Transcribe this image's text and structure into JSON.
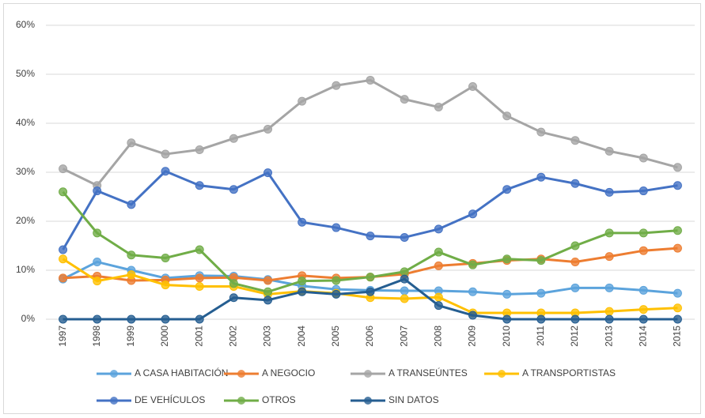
{
  "chart_data": {
    "type": "line",
    "categories": [
      "1997",
      "1998",
      "1999",
      "2000",
      "2001",
      "2002",
      "2003",
      "2004",
      "2005",
      "2006",
      "2007",
      "2008",
      "2009",
      "2010",
      "2011",
      "2012",
      "2013",
      "2014",
      "2015"
    ],
    "ylim": [
      0,
      60
    ],
    "yticks": [
      {
        "value": 0,
        "label": "0%"
      },
      {
        "value": 10,
        "label": "10%"
      },
      {
        "value": 20,
        "label": "20%"
      },
      {
        "value": 30,
        "label": "30%"
      },
      {
        "value": 40,
        "label": "40%"
      },
      {
        "value": 50,
        "label": "50%"
      },
      {
        "value": 60,
        "label": "60%"
      }
    ],
    "grid": true,
    "legend": "bottom",
    "series": [
      {
        "name": "A CASA HABITACIÓN",
        "color": "#5ba3dc",
        "values": [
          8.2,
          11.7,
          10.0,
          8.4,
          8.9,
          8.8,
          8.1,
          6.8,
          6.1,
          5.9,
          5.8,
          5.8,
          5.6,
          5.1,
          5.3,
          6.4,
          6.4,
          5.9,
          5.3
        ]
      },
      {
        "name": "A NEGOCIO",
        "color": "#ed7d31",
        "values": [
          8.4,
          8.8,
          7.9,
          8.0,
          8.4,
          8.5,
          7.9,
          8.9,
          8.4,
          8.6,
          9.2,
          10.9,
          11.4,
          12.0,
          12.3,
          11.7,
          12.8,
          14.0,
          14.5
        ]
      },
      {
        "name": "A TRANSEÚNTES",
        "color": "#a5a5a5",
        "values": [
          30.7,
          27.3,
          36.0,
          33.7,
          34.6,
          36.9,
          38.8,
          44.5,
          47.7,
          48.8,
          44.9,
          43.3,
          47.5,
          41.5,
          38.2,
          36.5,
          34.3,
          32.9,
          31.0
        ]
      },
      {
        "name": "A TRANSPORTISTAS",
        "color": "#ffc000",
        "values": [
          12.3,
          7.8,
          9.1,
          7.0,
          6.7,
          6.7,
          5.1,
          5.7,
          5.3,
          4.4,
          4.2,
          4.5,
          1.3,
          1.3,
          1.3,
          1.3,
          1.6,
          2.0,
          2.3
        ]
      },
      {
        "name": "DE VEHÍCULOS",
        "color": "#4472c4",
        "values": [
          14.2,
          26.2,
          23.4,
          30.2,
          27.3,
          26.5,
          29.9,
          19.8,
          18.7,
          17.0,
          16.7,
          18.4,
          21.5,
          26.5,
          29.0,
          27.7,
          25.9,
          26.2,
          27.3
        ]
      },
      {
        "name": "OTROS",
        "color": "#70ad47",
        "values": [
          26.0,
          17.6,
          13.1,
          12.5,
          14.2,
          7.3,
          5.6,
          7.8,
          7.9,
          8.6,
          9.7,
          13.7,
          11.1,
          12.3,
          12.0,
          15.0,
          17.6,
          17.6,
          18.1
        ]
      },
      {
        "name": "SIN DATOS",
        "color": "#255e91",
        "values": [
          0,
          0,
          0,
          0,
          0,
          4.4,
          3.9,
          5.6,
          5.1,
          5.6,
          8.2,
          2.8,
          0.8,
          0,
          0,
          0,
          0,
          0,
          0
        ]
      }
    ]
  }
}
